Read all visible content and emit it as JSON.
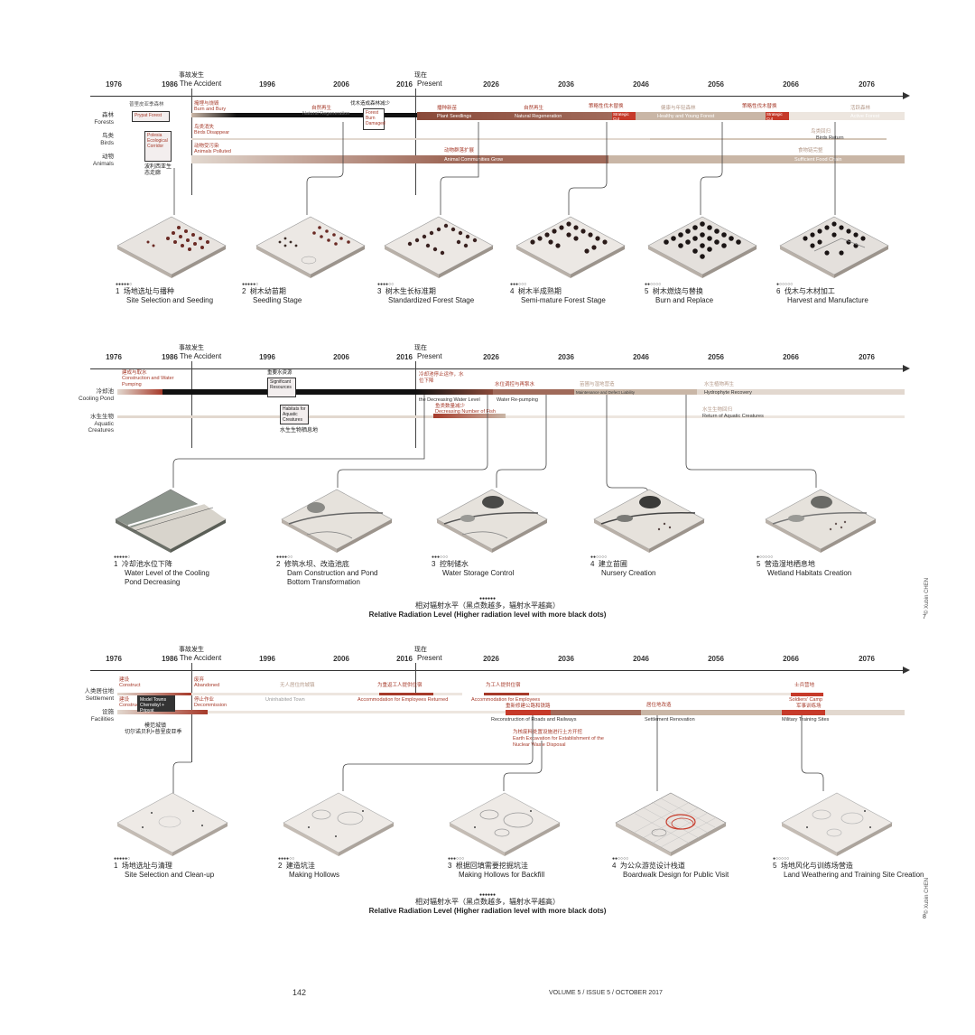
{
  "years": [
    "1976",
    "1986",
    "1996",
    "2006",
    "2016",
    "2026",
    "2036",
    "2046",
    "2056",
    "2066",
    "2076"
  ],
  "accident": {
    "zh": "事故发生",
    "en": "The Accident"
  },
  "present": {
    "zh": "现在",
    "en": "Present"
  },
  "sections": [
    {
      "categories": [
        {
          "zh": "森林",
          "en": "Forests"
        },
        {
          "zh": "鸟类",
          "en": "Birds"
        },
        {
          "zh": "动物",
          "en": "Animals"
        }
      ],
      "labels": {
        "pripyat_zh": "普里皮亚季森林",
        "pripyat_box": "Prypat Forest",
        "burn_zh": "掩埋与烧毁",
        "burn_en": "Burn and Bury",
        "birds_zh": "鸟类消失",
        "birds_en": "Birds Disappear",
        "animals_zh": "动物受污染",
        "animals_en": "Animals Polluted",
        "polesia_box": "Polesia Ecological Corridor",
        "polesia_zh": "波利西亚生态走廊",
        "natural_zh": "自然再生",
        "natural_en": "Natural Regeneration",
        "cut_zh": "伐木造成森林减少",
        "cut_box": "Forest Burn Damaged",
        "plant_zh": "播种新苗",
        "plant_en": "Plant Seedlings",
        "natural2_zh": "自然再生",
        "natural2_en": "Natural Regeneration",
        "strategic_zh": "策略性伐木替换",
        "strategic_box": "Strategic Cut Replace",
        "healthy_zh": "健康与年轻森林",
        "healthy_en": "Healthy and Young Forest",
        "strategic2_zh": "策略性伐木替换",
        "strategic2_box": "Strategic Cut Replace",
        "active_zh": "活跃森林",
        "active_en": "Active Forest",
        "birdsret_zh": "鸟类回归",
        "birdsret_en": "Birds Return",
        "comm_zh": "动物群落扩展",
        "comm_en": "Animal Communities Grow",
        "chain_zh": "食物链完整",
        "chain_en": "Sufficient Food Chain"
      },
      "captions": [
        {
          "dots": "●●●●●○",
          "num": "1",
          "zh": "场地选址与播种",
          "en": "Site Selection and Seeding"
        },
        {
          "dots": "●●●●●○",
          "num": "2",
          "zh": "树木幼苗期",
          "en": "Seedling Stage"
        },
        {
          "dots": "●●●●○○",
          "num": "3",
          "zh": "树木生长标准期",
          "en": "Standardized Forest Stage"
        },
        {
          "dots": "●●●○○○",
          "num": "4",
          "zh": "树木半成熟期",
          "en": "Semi-mature Forest Stage"
        },
        {
          "dots": "●●○○○○",
          "num": "5",
          "zh": "树木燃烧与替换",
          "en": "Burn and Replace"
        },
        {
          "dots": "●○○○○○",
          "num": "6",
          "zh": "伐木与木材加工",
          "en": "Harvest and Manufacture"
        }
      ]
    },
    {
      "categories": [
        {
          "zh": "冷却池",
          "en": "Cooling Pond"
        },
        {
          "zh": "水生生物",
          "en": "Aquatic Creatures"
        }
      ],
      "labels": {
        "const_zh": "建成与取水",
        "const_en": "Construction and Water Pumping",
        "sig_zh": "重要水资源",
        "sig_box": "Significant Resources",
        "habit_box": "Habitats for Aquatic Creatures",
        "habit_zh": "水生生物栖息地",
        "dec_zh": "冷却池停止运作，水位下降",
        "dec_en": "the Decreasing Water Level",
        "fish_zh": "鱼类数量减少",
        "fish_en": "Decreasing Number of Fish",
        "pump_zh": "水位调控与再泵水",
        "pump_en": "Water Re-pumping",
        "nursery_zh": "苗圃与湿地营造",
        "nursery_en": "Maintenance and Defect Liability",
        "hydro_zh": "水生植物再生",
        "hydro_en": "Hydrophyte Recovery",
        "return_zh": "水生生物回归",
        "return_en": "Return of Aquatic Creatures"
      },
      "captions": [
        {
          "dots": "●●●●●○",
          "num": "1",
          "zh": "冷却池水位下降",
          "en": "Water Level of the Cooling Pond Decreasing"
        },
        {
          "dots": "●●●●○○",
          "num": "2",
          "zh": "修筑水坝、改造池底",
          "en": "Dam Construction and Pond Bottom Transformation"
        },
        {
          "dots": "●●●○○○",
          "num": "3",
          "zh": "控制储水",
          "en": "Water Storage Control"
        },
        {
          "dots": "●●○○○○",
          "num": "4",
          "zh": "建立苗圃",
          "en": "Nursery Creation"
        },
        {
          "dots": "●○○○○○",
          "num": "5",
          "zh": "营造湿地栖息地",
          "en": "Wetland Habitats Creation"
        }
      ],
      "radiation": {
        "dots": "●●●●●●",
        "zh": "相对辐射水平（黑点数越多，辐射水平越高）",
        "en": "Relative Radiation Level (Higher radiation level with more black dots)"
      }
    },
    {
      "categories": [
        {
          "zh": "人类居住地",
          "en": "Settlement"
        },
        {
          "zh": "设施",
          "en": "Facilities"
        }
      ],
      "labels": {
        "build_zh": "建设",
        "build_en": "Construct",
        "built_zh": "建设",
        "built_en": "Construct",
        "aban_zh": "废弃",
        "aban_en": "Abandoned",
        "decom_zh": "停止作业",
        "decom_en": "Decommission",
        "model_box": "Model Towns Chernobyl + Pripyat",
        "model_zh": "模范城镇",
        "model2_zh": "切尔诺贝利+普里皮亚季",
        "uninh_zh": "无人居住的城镇",
        "uninh_en": "Uninhabited Town",
        "emp_zh": "为重返工人提供住宿",
        "emp_en": "Accommodation for Employees Returned",
        "emp2_zh": "为工人提供住宿",
        "emp2_en": "Accommodation for Employees",
        "rec_zh": "重新修建公路和铁路",
        "rec_en": "Reconstruction of Roads and Railways",
        "earth_zh": "为核废料处置设施进行土方开挖",
        "earth_en": "Earth Excavation for Establishment of the Nuclear Waste Disposal",
        "settle_zh": "居住地改造",
        "settle_en": "Settlement Renovation",
        "camp_zh": "士兵营地",
        "camp_en": "Soldiers' Camp",
        "mil_zh": "军事训练场",
        "mil_en": "Military Training Sites"
      },
      "captions": [
        {
          "dots": "●●●●●○",
          "num": "1",
          "zh": "场地选址与清理",
          "en": "Site Selection and Clean-up"
        },
        {
          "dots": "●●●●○○",
          "num": "2",
          "zh": "建造坑洼",
          "en": "Making Hollows"
        },
        {
          "dots": "●●●○○○",
          "num": "3",
          "zh": "根据回填需要挖掘坑洼",
          "en": "Making Hollows for Backfill"
        },
        {
          "dots": "●●○○○○",
          "num": "4",
          "zh": "为公众游览设计栈道",
          "en": "Boardwalk Design for Public Visit"
        },
        {
          "dots": "●○○○○○",
          "num": "5",
          "zh": "场地风化与训练场营造",
          "en": "Land Weathering and Training Site Creation"
        }
      ],
      "radiation": {
        "dots": "●●●●●●",
        "zh": "相对辐射水平（黑点数越多，辐射水平越高）",
        "en": "Relative Radiation Level (Higher radiation level with more black dots)"
      }
    }
  ],
  "credit": "© Xubin CHEN",
  "page_numbers": {
    "p7": "7",
    "p8": "8"
  },
  "footer": {
    "page": "142",
    "journal": "VOLUME 5 / ISSUE 5 / OCTOBER 2017"
  },
  "colors": {
    "red": "#a63a2a",
    "brightred": "#c63a2a",
    "black": "#111111",
    "tan": "#c9b6a6",
    "light": "#e2d8cf",
    "verylight": "#ede6df"
  }
}
